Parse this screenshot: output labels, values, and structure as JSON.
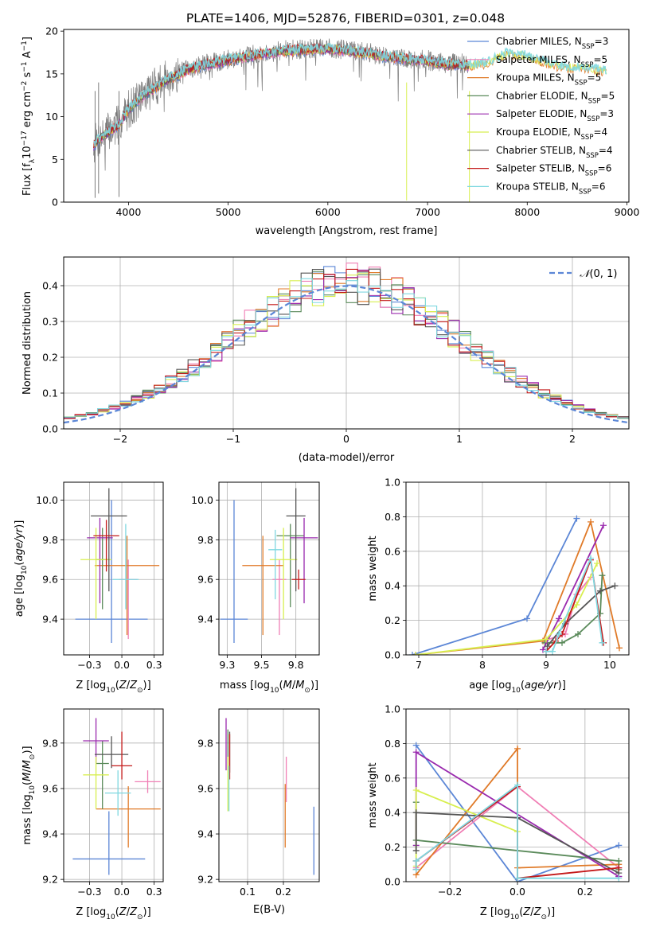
{
  "figure": {
    "title": "PLATE=1406, MJD=52876, FIBERID=0301, z=0.048"
  },
  "colors": {
    "Chabrier MILES": "#5b86d6",
    "Salpeter MILES": "#f07fb5",
    "Kroupa MILES": "#e07a28",
    "Chabrier ELODIE": "#5a8a5a",
    "Salpeter ELODIE": "#9a2aae",
    "Kroupa ELODIE": "#d8ef50",
    "Chabrier STELIB": "#555555",
    "Salpeter STELIB": "#c41a1a",
    "Kroupa STELIB": "#7fd8e0"
  },
  "chart_data": [
    {
      "id": "spectrum",
      "type": "line",
      "title": "",
      "xlabel": "wavelength [Angstrom, rest frame]",
      "ylabel": "Flux [f_λ10^-17 erg cm^-2 s^-1 A^-1]",
      "xlim": [
        3350,
        9020
      ],
      "ylim": [
        0,
        20.2
      ],
      "xticks": [
        4000,
        5000,
        6000,
        7000,
        8000,
        9000
      ],
      "yticks": [
        0,
        5,
        10,
        15,
        20
      ],
      "grid": false,
      "legend_position": "right",
      "data_trend": {
        "x": [
          3650,
          3700,
          3800,
          3900,
          4000,
          4100,
          4200,
          4300,
          4400,
          4500,
          4600,
          4800,
          5000,
          5200,
          5400,
          5600,
          5800,
          6000,
          6200,
          6400,
          6600,
          6800,
          7000,
          7200,
          7400
        ],
        "y": [
          6.7,
          7.4,
          8.3,
          9.0,
          10.9,
          12.0,
          13.0,
          13.8,
          14.6,
          15.0,
          15.6,
          16.2,
          16.7,
          17.1,
          17.5,
          17.8,
          17.9,
          18.0,
          17.8,
          17.5,
          17.0,
          16.7,
          16.6,
          16.2,
          16.2
        ]
      },
      "model_trend": {
        "x": [
          3650,
          3700,
          3800,
          3900,
          4000,
          4100,
          4200,
          4300,
          4400,
          4500,
          4600,
          4800,
          5000,
          5200,
          5400,
          5600,
          5800,
          6000,
          6200,
          6400,
          6600,
          6800,
          7000,
          7200,
          7400,
          7600,
          7800,
          8000,
          8200,
          8400,
          8600,
          8800
        ],
        "y": [
          6.5,
          7.3,
          8.2,
          9.0,
          10.8,
          12.0,
          12.9,
          13.6,
          14.4,
          14.9,
          15.5,
          16.1,
          16.6,
          17.0,
          17.4,
          17.7,
          17.8,
          17.9,
          17.7,
          17.4,
          17.0,
          16.7,
          16.5,
          16.1,
          16.0,
          16.2,
          17.3,
          17.1,
          16.2,
          15.7,
          15.6,
          15.2
        ]
      },
      "series": [
        {
          "name": "Chabrier MILES",
          "nssp": "N_SSP=3"
        },
        {
          "name": "Salpeter MILES",
          "nssp": "N_SSP=5"
        },
        {
          "name": "Kroupa MILES",
          "nssp": "N_SSP=5"
        },
        {
          "name": "Chabrier ELODIE",
          "nssp": "N_SSP=5"
        },
        {
          "name": "Salpeter ELODIE",
          "nssp": "N_SSP=3"
        },
        {
          "name": "Kroupa ELODIE",
          "nssp": "N_SSP=4"
        },
        {
          "name": "Chabrier STELIB",
          "nssp": "N_SSP=4"
        },
        {
          "name": "Salpeter STELIB",
          "nssp": "N_SSP=6"
        },
        {
          "name": "Kroupa STELIB",
          "nssp": "N_SSP=6"
        }
      ],
      "legend_labels": [
        "Chabrier MILES, N",
        "Salpeter MILES, N",
        "Kroupa MILES, N",
        "Chabrier ELODIE, N",
        "Salpeter ELODIE, N",
        "Kroupa ELODIE, N",
        "Chabrier STELIB, N",
        "Salpeter STELIB, N",
        "Kroupa STELIB, N"
      ],
      "legend_counts": [
        "=3",
        "=5",
        "=5",
        "=5",
        "=3",
        "=4",
        "=4",
        "=6",
        "=6"
      ],
      "legend_subscript": "SSP"
    },
    {
      "id": "residuals",
      "type": "line",
      "title": "",
      "xlabel": "(data-model)/error",
      "ylabel": "Normed distribution",
      "xlim": [
        -2.5,
        2.5
      ],
      "ylim": [
        0,
        0.48
      ],
      "xticks": [
        -2,
        -1,
        0,
        1,
        2
      ],
      "yticks": [
        0.0,
        0.1,
        0.2,
        0.3,
        0.4
      ],
      "grid": true,
      "reference_curve": "N(0,1)",
      "reference_label": "(0, 1)",
      "reference_symbol": "𝒩",
      "legend_position": "top-right",
      "bin_edges_start": -2.5,
      "bin_width": 0.1
    },
    {
      "id": "age_vs_Z",
      "type": "scatter",
      "xlabel": "Z [log10(Z/Z☉)]",
      "ylabel": "age [log10(age/yr)]",
      "xlim": [
        -0.45,
        0.32
      ],
      "ylim": [
        9.22,
        10.09
      ],
      "xticks": [
        -0.25,
        0.0,
        0.25
      ],
      "yticks": [
        9.4,
        9.6,
        9.8,
        10.0
      ],
      "grid": true,
      "points": [
        {
          "series": "Chabrier MILES",
          "x": -0.08,
          "y": 9.4,
          "xerr": 0.28,
          "yerr_low": 0.12,
          "yerr_high": 0.6
        },
        {
          "series": "Salpeter MILES",
          "x": 0.05,
          "y": 9.6,
          "xerr": 0.07,
          "yerr_low": 0.3,
          "yerr_high": 0.1
        },
        {
          "series": "Kroupa MILES",
          "x": 0.04,
          "y": 9.67,
          "xerr": 0.25,
          "yerr_low": 0.35,
          "yerr_high": 0.15
        },
        {
          "series": "Chabrier ELODIE",
          "x": -0.15,
          "y": 9.7,
          "xerr": 0.05,
          "yerr_low": 0.25,
          "yerr_high": 0.16
        },
        {
          "series": "Salpeter ELODIE",
          "x": -0.17,
          "y": 9.81,
          "xerr": 0.1,
          "yerr_low": 0.33,
          "yerr_high": 0.1
        },
        {
          "series": "Kroupa ELODIE",
          "x": -0.2,
          "y": 9.7,
          "xerr": 0.12,
          "yerr_low": 0.3,
          "yerr_high": 0.16
        },
        {
          "series": "Chabrier STELIB",
          "x": -0.1,
          "y": 9.92,
          "xerr": 0.14,
          "yerr_low": 0.38,
          "yerr_high": 0.14
        },
        {
          "series": "Salpeter STELIB",
          "x": -0.12,
          "y": 9.82,
          "xerr": 0.1,
          "yerr_low": 0.18,
          "yerr_high": 0.08
        },
        {
          "series": "Kroupa STELIB",
          "x": 0.03,
          "y": 9.6,
          "xerr": 0.1,
          "yerr_low": 0.15,
          "yerr_high": 0.28
        }
      ]
    },
    {
      "id": "age_vs_mass",
      "type": "scatter",
      "xlabel": "mass [log10(M/M☉)]",
      "ylabel": "",
      "xlim": [
        9.19,
        9.92
      ],
      "ylim": [
        9.22,
        10.09
      ],
      "xticks": [
        9.25,
        9.5,
        9.75
      ],
      "yticks": [
        9.4,
        9.6,
        9.8,
        10.0
      ],
      "grid": true,
      "points": [
        {
          "series": "Chabrier MILES",
          "x": 9.3,
          "y": 9.4,
          "xerr": 0.1,
          "yerr_low": 0.12,
          "yerr_high": 0.6
        },
        {
          "series": "Salpeter MILES",
          "x": 9.63,
          "y": 9.6,
          "xerr": 0.05,
          "yerr_low": 0.28,
          "yerr_high": 0.1
        },
        {
          "series": "Kroupa MILES",
          "x": 9.51,
          "y": 9.67,
          "xerr": 0.15,
          "yerr_low": 0.35,
          "yerr_high": 0.15
        },
        {
          "series": "Chabrier ELODIE",
          "x": 9.71,
          "y": 9.82,
          "xerr": 0.1,
          "yerr_low": 0.36,
          "yerr_high": 0.06
        },
        {
          "series": "Salpeter ELODIE",
          "x": 9.81,
          "y": 9.81,
          "xerr": 0.1,
          "yerr_low": 0.33,
          "yerr_high": 0.1
        },
        {
          "series": "Kroupa ELODIE",
          "x": 9.66,
          "y": 9.7,
          "xerr": 0.1,
          "yerr_low": 0.3,
          "yerr_high": 0.16
        },
        {
          "series": "Chabrier STELIB",
          "x": 9.75,
          "y": 9.92,
          "xerr": 0.07,
          "yerr_low": 0.38,
          "yerr_high": 0.14
        },
        {
          "series": "Salpeter STELIB",
          "x": 9.77,
          "y": 9.6,
          "xerr": 0.05,
          "yerr_low": 0.05,
          "yerr_high": 0.05
        },
        {
          "series": "Kroupa STELIB",
          "x": 9.6,
          "y": 9.75,
          "xerr": 0.05,
          "yerr_low": 0.25,
          "yerr_high": 0.1
        }
      ]
    },
    {
      "id": "mass_weight_vs_age",
      "type": "line",
      "xlabel": "age [log10(age/yr)]",
      "ylabel": "mass weight",
      "xlim": [
        6.8,
        10.3
      ],
      "ylim": [
        0,
        1
      ],
      "xticks": [
        7,
        8,
        9,
        10
      ],
      "yticks": [
        0.0,
        0.2,
        0.4,
        0.6,
        0.8,
        1.0
      ],
      "grid": true,
      "series": [
        {
          "name": "Chabrier MILES",
          "x": [
            6.9,
            8.7,
            9.48
          ],
          "y": [
            0.0,
            0.21,
            0.79
          ]
        },
        {
          "name": "Salpeter MILES",
          "x": [
            8.95,
            9.3,
            9.48,
            9.7
          ],
          "y": [
            0.08,
            0.12,
            0.35,
            0.45
          ]
        },
        {
          "name": "Kroupa MILES",
          "x": [
            6.95,
            8.95,
            9.7,
            10.15
          ],
          "y": [
            0.0,
            0.08,
            0.77,
            0.04
          ]
        },
        {
          "name": "Chabrier ELODIE",
          "x": [
            8.98,
            9.25,
            9.5,
            9.85,
            9.88
          ],
          "y": [
            0.07,
            0.07,
            0.12,
            0.24,
            0.46
          ]
        },
        {
          "name": "Salpeter ELODIE",
          "x": [
            8.95,
            9.2,
            9.9
          ],
          "y": [
            0.03,
            0.21,
            0.75
          ]
        },
        {
          "name": "Kroupa ELODIE",
          "x": [
            6.95,
            9.0,
            9.48,
            9.8
          ],
          "y": [
            0.0,
            0.09,
            0.29,
            0.53
          ]
        },
        {
          "name": "Chabrier STELIB",
          "x": [
            9.02,
            9.3,
            9.85,
            10.08
          ],
          "y": [
            0.05,
            0.18,
            0.37,
            0.4
          ]
        },
        {
          "name": "Salpeter STELIB",
          "x": [
            9.0,
            9.15,
            9.25,
            9.7,
            9.9
          ],
          "y": [
            0.02,
            0.08,
            0.12,
            0.55,
            0.07
          ]
        },
        {
          "name": "Kroupa STELIB",
          "x": [
            9.0,
            9.1,
            9.2,
            9.7,
            9.88
          ],
          "y": [
            0.02,
            0.02,
            0.12,
            0.56,
            0.07
          ]
        }
      ]
    },
    {
      "id": "mass_vs_Z",
      "type": "scatter",
      "xlabel": "Z [log10(Z/Z☉)]",
      "ylabel": "mass [log10(M/M☉)]",
      "xlim": [
        -0.45,
        0.32
      ],
      "ylim": [
        9.19,
        9.95
      ],
      "xticks": [
        -0.25,
        0.0,
        0.25
      ],
      "yticks": [
        9.2,
        9.4,
        9.6,
        9.8
      ],
      "grid": true,
      "points": [
        {
          "series": "Chabrier MILES",
          "x": -0.1,
          "y": 9.29,
          "xerr": 0.28,
          "yerr_low": 0.07,
          "yerr_high": 0.21
        },
        {
          "series": "Salpeter MILES",
          "x": 0.2,
          "y": 9.63,
          "xerr": 0.1,
          "yerr_low": 0.05,
          "yerr_high": 0.05
        },
        {
          "series": "Kroupa MILES",
          "x": 0.05,
          "y": 9.51,
          "xerr": 0.25,
          "yerr_low": 0.17,
          "yerr_high": 0.1
        },
        {
          "series": "Chabrier ELODIE",
          "x": -0.15,
          "y": 9.71,
          "xerr": 0.05,
          "yerr_low": 0.2,
          "yerr_high": 0.1
        },
        {
          "series": "Salpeter ELODIE",
          "x": -0.2,
          "y": 9.81,
          "xerr": 0.1,
          "yerr_low": 0.1,
          "yerr_high": 0.1
        },
        {
          "series": "Kroupa ELODIE",
          "x": -0.2,
          "y": 9.66,
          "xerr": 0.1,
          "yerr_low": 0.15,
          "yerr_high": 0.08
        },
        {
          "series": "Chabrier STELIB",
          "x": -0.08,
          "y": 9.75,
          "xerr": 0.13,
          "yerr_low": 0.06,
          "yerr_high": 0.08
        },
        {
          "series": "Salpeter STELIB",
          "x": 0.0,
          "y": 9.7,
          "xerr": 0.08,
          "yerr_low": 0.06,
          "yerr_high": 0.15
        },
        {
          "series": "Kroupa STELIB",
          "x": -0.03,
          "y": 9.58,
          "xerr": 0.1,
          "yerr_low": 0.1,
          "yerr_high": 0.1
        }
      ]
    },
    {
      "id": "mass_vs_ebv",
      "type": "scatter",
      "xlabel": "E(B-V)",
      "ylabel": "",
      "xlim": [
        0.02,
        0.3
      ],
      "ylim": [
        9.19,
        9.95
      ],
      "xticks": [
        0.1,
        0.2
      ],
      "yticks": [
        9.2,
        9.4,
        9.6,
        9.8
      ],
      "grid": true,
      "points": [
        {
          "series": "Chabrier MILES",
          "x": 0.285,
          "y": 9.4,
          "yerr_low": 0.18,
          "yerr_high": 0.12
        },
        {
          "series": "Salpeter MILES",
          "x": 0.208,
          "y": 9.64,
          "yerr_low": 0.1,
          "yerr_high": 0.1
        },
        {
          "series": "Kroupa MILES",
          "x": 0.205,
          "y": 9.5,
          "yerr_low": 0.16,
          "yerr_high": 0.12
        },
        {
          "series": "Chabrier ELODIE",
          "x": 0.045,
          "y": 9.78,
          "yerr_low": 0.1,
          "yerr_high": 0.08
        },
        {
          "series": "Salpeter ELODIE",
          "x": 0.04,
          "y": 9.81,
          "yerr_low": 0.13,
          "yerr_high": 0.1
        },
        {
          "series": "Kroupa ELODIE",
          "x": 0.045,
          "y": 9.66,
          "yerr_low": 0.16,
          "yerr_high": 0.08
        },
        {
          "series": "Chabrier STELIB",
          "x": 0.05,
          "y": 9.75,
          "yerr_low": 0.08,
          "yerr_high": 0.1
        },
        {
          "series": "Salpeter STELIB",
          "x": 0.05,
          "y": 9.72,
          "yerr_low": 0.08,
          "yerr_high": 0.12
        },
        {
          "series": "Kroupa STELIB",
          "x": 0.048,
          "y": 9.6,
          "yerr_low": 0.1,
          "yerr_high": 0.1
        }
      ]
    },
    {
      "id": "mass_weight_vs_Z",
      "type": "line",
      "xlabel": "Z [log10(Z/Z☉)]",
      "ylabel": "mass weight",
      "xlim": [
        -0.33,
        0.33
      ],
      "ylim": [
        0,
        1
      ],
      "xticks": [
        -0.2,
        0.0,
        0.2
      ],
      "yticks": [
        0.0,
        0.2,
        0.4,
        0.6,
        0.8,
        1.0
      ],
      "grid": true,
      "series": [
        {
          "name": "Chabrier MILES",
          "x": [
            -0.3,
            0.0,
            0.3
          ],
          "y": [
            0.79,
            0.0,
            0.21
          ]
        },
        {
          "name": "Salpeter MILES",
          "x": [
            -0.3,
            0.0,
            0.3
          ],
          "y": [
            0.08,
            0.55,
            0.08
          ]
        },
        {
          "name": "Kroupa MILES",
          "x": [
            -0.3,
            0.0,
            0.0,
            0.3
          ],
          "y": [
            0.04,
            0.77,
            0.08,
            0.1
          ]
        },
        {
          "name": "Chabrier ELODIE",
          "x": [
            -0.3,
            -0.3,
            0.3,
            0.3
          ],
          "y": [
            0.46,
            0.24,
            0.12,
            0.07
          ]
        },
        {
          "name": "Salpeter ELODIE",
          "x": [
            -0.3,
            -0.3,
            0.3,
            0.3
          ],
          "y": [
            0.21,
            0.75,
            0.03,
            0.03
          ]
        },
        {
          "name": "Kroupa ELODIE",
          "x": [
            -0.3,
            -0.3,
            0.0
          ],
          "y": [
            0.09,
            0.53,
            0.29
          ]
        },
        {
          "name": "Chabrier STELIB",
          "x": [
            -0.3,
            -0.3,
            0.0,
            0.3
          ],
          "y": [
            0.18,
            0.4,
            0.37,
            0.05
          ]
        },
        {
          "name": "Salpeter STELIB",
          "x": [
            -0.3,
            -0.3,
            0.0,
            0.0,
            0.3
          ],
          "y": [
            0.07,
            0.12,
            0.55,
            0.02,
            0.08
          ]
        },
        {
          "name": "Kroupa STELIB",
          "x": [
            -0.3,
            -0.3,
            0.0,
            0.0,
            0.3
          ],
          "y": [
            0.07,
            0.12,
            0.56,
            0.02,
            0.02
          ]
        }
      ]
    }
  ]
}
